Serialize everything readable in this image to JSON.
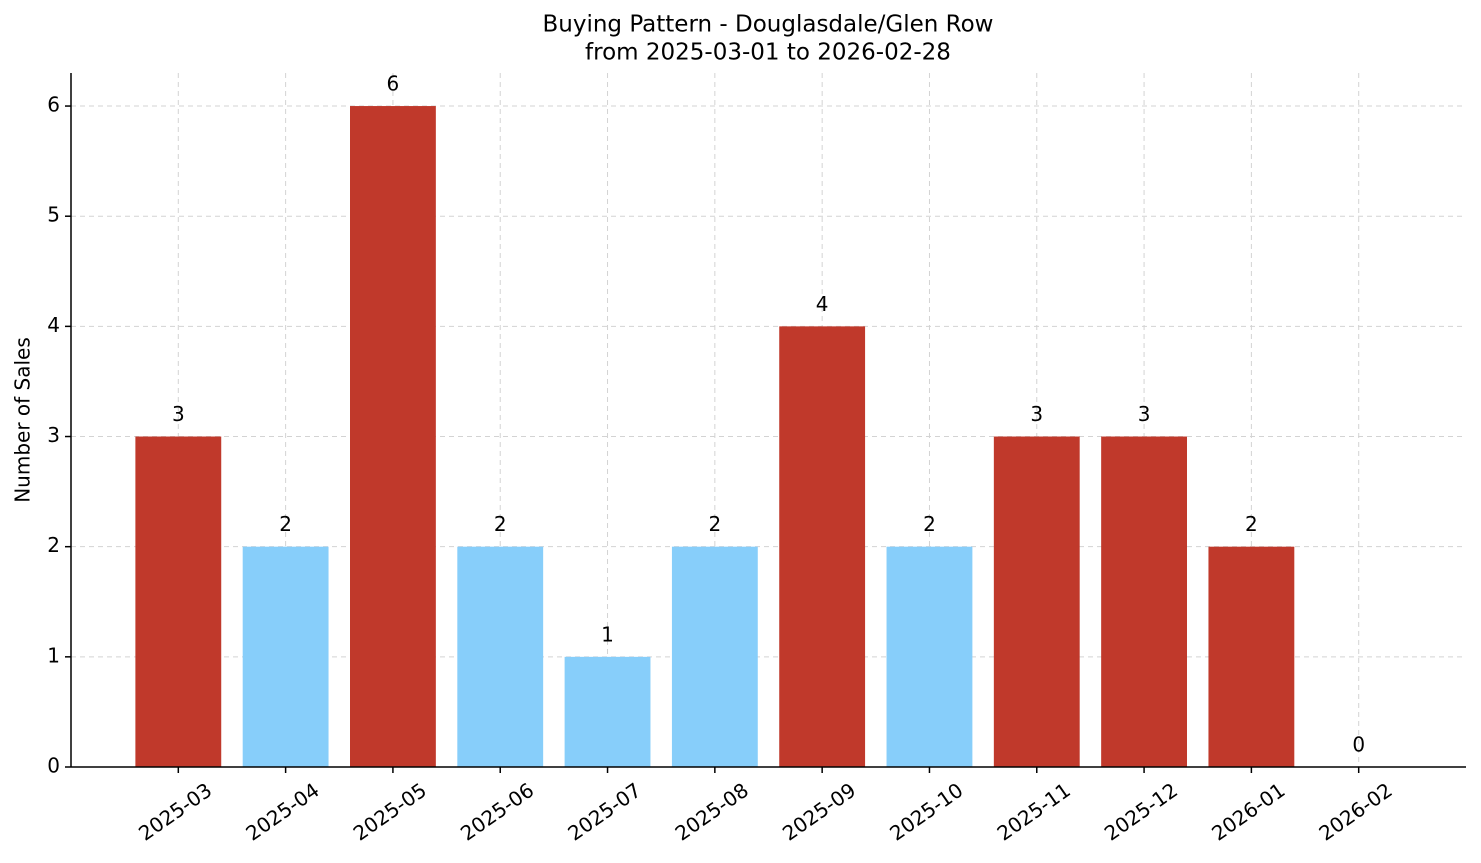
{
  "chart_data": {
    "type": "bar",
    "title": "Buying Pattern - Douglasdale/Glen Row",
    "subtitle": "from 2025-03-01 to 2026-02-28",
    "y_label": "Number of Sales",
    "categories": [
      "2025-03",
      "2025-04",
      "2025-05",
      "2025-06",
      "2025-07",
      "2025-08",
      "2025-09",
      "2025-10",
      "2025-11",
      "2025-12",
      "2026-01",
      "2026-02"
    ],
    "values": [
      3,
      2,
      6,
      2,
      1,
      2,
      4,
      2,
      3,
      3,
      2,
      0
    ],
    "colors": [
      "#c0392b",
      "#87cefa",
      "#c0392b",
      "#87cefa",
      "#87cefa",
      "#87cefa",
      "#c0392b",
      "#87cefa",
      "#c0392b",
      "#c0392b",
      "#c0392b",
      "#87cefa"
    ],
    "ylim": [
      0,
      6.3
    ],
    "yticks": [
      0,
      1,
      2,
      3,
      4,
      5,
      6
    ],
    "grid": true
  }
}
